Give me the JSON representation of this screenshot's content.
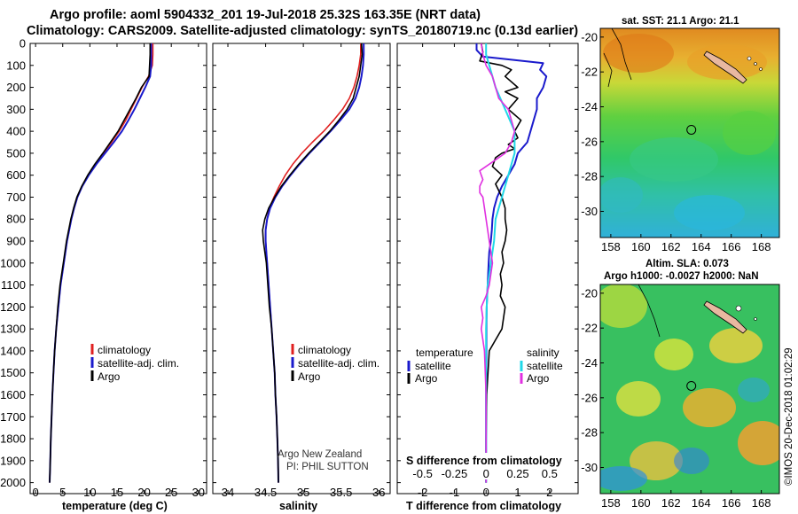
{
  "header": {
    "line1": "Argo profile: aoml 5904332_201 19-Jul-2018 25.32S 163.35E (NRT data)",
    "line2": "Climatology: CARS2009. Satellite-adjusted climatology: synTS_20180719.nc (0.13d earlier)"
  },
  "colors": {
    "climatology": "#e02020",
    "satellite": "#1a1acc",
    "argo": "#000000",
    "satellite_s": "#20d8e8",
    "argo_s": "#e030e0"
  },
  "depth_ticks": [
    "0",
    "100",
    "200",
    "300",
    "400",
    "500",
    "600",
    "700",
    "800",
    "900",
    "1000",
    "1100",
    "1200",
    "1300",
    "1400",
    "1500",
    "1600",
    "1700",
    "1800",
    "1900",
    "2000"
  ],
  "chart_data": [
    {
      "type": "line",
      "id": "temperature",
      "xlabel": "temperature (deg C)",
      "ylabel": "",
      "xlim": [
        -1,
        31.5
      ],
      "ylim": [
        0,
        2050
      ],
      "y_inverted": true,
      "xticks": [
        0,
        5,
        10,
        15,
        20,
        25,
        30
      ],
      "legend": [
        "climatology",
        "satellite-adj. clim.",
        "Argo"
      ],
      "series": [
        {
          "name": "climatology",
          "y": [
            0,
            50,
            100,
            150,
            200,
            250,
            300,
            350,
            400,
            450,
            500,
            550,
            600,
            650,
            700,
            750,
            800,
            900,
            1000,
            1100,
            1200,
            1300,
            1400,
            1500,
            1600,
            1700,
            1800,
            1900,
            2000
          ],
          "x": [
            21.6,
            21.6,
            21.5,
            20.8,
            19.6,
            18.6,
            17.6,
            16.6,
            15.4,
            14.0,
            12.5,
            11.0,
            9.7,
            8.6,
            7.7,
            7.1,
            6.6,
            5.8,
            5.2,
            4.6,
            4.2,
            3.8,
            3.5,
            3.3,
            3.1,
            2.95,
            2.8,
            2.7,
            2.6
          ]
        },
        {
          "name": "satellite-adj. clim.",
          "y": [
            0,
            50,
            100,
            150,
            200,
            250,
            300,
            350,
            400,
            450,
            500,
            550,
            600,
            650,
            700,
            750,
            800,
            900,
            1000,
            1100,
            1200,
            1300,
            1400,
            1500,
            1600,
            1700,
            1800,
            1900,
            2000
          ],
          "x": [
            21.3,
            21.3,
            21.3,
            21.1,
            20.2,
            19.2,
            18.2,
            17.1,
            15.9,
            14.4,
            12.8,
            11.2,
            9.8,
            8.6,
            7.7,
            7.1,
            6.6,
            5.8,
            5.2,
            4.6,
            4.2,
            3.8,
            3.5,
            3.3,
            3.1,
            2.95,
            2.8,
            2.7,
            2.6
          ]
        },
        {
          "name": "Argo",
          "y": [
            0,
            50,
            100,
            150,
            200,
            250,
            300,
            350,
            400,
            450,
            500,
            550,
            600,
            650,
            700,
            750,
            800,
            900,
            1000,
            1100,
            1200,
            1300,
            1400,
            1500,
            1600,
            1700,
            1800,
            1900,
            2000
          ],
          "x": [
            21.1,
            21.1,
            21.0,
            20.9,
            19.5,
            18.5,
            17.4,
            16.3,
            15.2,
            13.8,
            12.4,
            10.9,
            9.6,
            8.5,
            7.6,
            7.0,
            6.5,
            5.7,
            5.1,
            4.5,
            4.1,
            3.8,
            3.5,
            3.3,
            3.1,
            2.95,
            2.8,
            2.7,
            2.6
          ]
        }
      ]
    },
    {
      "type": "line",
      "id": "salinity",
      "xlabel": "salinity",
      "ylabel": "",
      "xlim": [
        33.8,
        36.15
      ],
      "ylim": [
        0,
        2050
      ],
      "y_inverted": true,
      "xticks": [
        34,
        34.5,
        35,
        35.5,
        36
      ],
      "legend": [
        "climatology",
        "satellite-adj. clim.",
        "Argo"
      ],
      "series": [
        {
          "name": "climatology",
          "y": [
            0,
            50,
            100,
            150,
            200,
            250,
            300,
            350,
            400,
            450,
            500,
            550,
            600,
            650,
            700,
            750,
            800,
            850,
            900,
            950,
            1000,
            1100,
            1200,
            1300,
            1400,
            1500,
            1600,
            1700,
            1800,
            1900,
            2000
          ],
          "x": [
            35.76,
            35.76,
            35.74,
            35.71,
            35.67,
            35.61,
            35.52,
            35.4,
            35.27,
            35.12,
            34.98,
            34.86,
            34.76,
            34.68,
            34.61,
            34.55,
            34.52,
            34.5,
            34.5,
            34.51,
            34.52,
            34.54,
            34.56,
            34.58,
            34.6,
            34.62,
            34.63,
            34.645,
            34.655,
            34.665,
            34.67
          ]
        },
        {
          "name": "satellite-adj. clim.",
          "y": [
            0,
            50,
            100,
            150,
            200,
            250,
            300,
            350,
            400,
            450,
            500,
            550,
            600,
            650,
            700,
            750,
            800,
            850,
            900,
            950,
            1000,
            1100,
            1200,
            1300,
            1400,
            1500,
            1600,
            1700,
            1800,
            1900,
            2000
          ],
          "x": [
            35.8,
            35.8,
            35.79,
            35.77,
            35.74,
            35.69,
            35.61,
            35.49,
            35.36,
            35.22,
            35.08,
            34.95,
            34.83,
            34.72,
            34.63,
            34.56,
            34.52,
            34.5,
            34.5,
            34.51,
            34.52,
            34.54,
            34.56,
            34.58,
            34.6,
            34.62,
            34.63,
            34.645,
            34.655,
            34.665,
            34.67
          ]
        },
        {
          "name": "Argo",
          "y": [
            0,
            50,
            100,
            150,
            200,
            250,
            300,
            350,
            400,
            450,
            500,
            550,
            600,
            650,
            700,
            750,
            800,
            850,
            900,
            950,
            1000,
            1100,
            1200,
            1300,
            1400,
            1500,
            1600,
            1700,
            1800,
            1900,
            2000
          ],
          "x": [
            35.77,
            35.78,
            35.76,
            35.74,
            35.7,
            35.66,
            35.58,
            35.47,
            35.35,
            35.21,
            35.07,
            34.94,
            34.82,
            34.71,
            34.62,
            34.54,
            34.49,
            34.46,
            34.47,
            34.49,
            34.51,
            34.53,
            34.55,
            34.58,
            34.6,
            34.62,
            34.63,
            34.645,
            34.655,
            34.665,
            34.67
          ]
        }
      ],
      "annotation": [
        "Argo New Zealand",
        "PI: PHIL SUTTON"
      ]
    },
    {
      "type": "line",
      "id": "difference",
      "xlabel": "T difference from climatology",
      "xlabel_top": "S difference from climatology",
      "ylabel": "",
      "xlim": [
        -2.8,
        2.9
      ],
      "ylim": [
        0,
        2050
      ],
      "y_inverted": true,
      "xticks": [
        -2,
        -1,
        0,
        1,
        2
      ],
      "xticks_top": [
        "-0.5",
        "-0.25",
        "0",
        "0.25",
        "0.5"
      ],
      "xticks_top_pos": [
        -2,
        -1,
        0,
        1,
        2
      ],
      "legend_left_title": "temperature",
      "legend_right_title": "salinity",
      "legend_left": [
        "satellite",
        "Argo"
      ],
      "legend_right": [
        "satellite",
        "Argo"
      ],
      "series": [
        {
          "name": "T satellite",
          "y": [
            0,
            30,
            60,
            90,
            120,
            150,
            200,
            250,
            300,
            350,
            400,
            450,
            500,
            550,
            600,
            650,
            700,
            750,
            800,
            850,
            900,
            950,
            1000,
            1100,
            1200,
            1300,
            1400,
            1600,
            1800,
            2000
          ],
          "x": [
            -0.3,
            -0.3,
            -0.1,
            1.8,
            1.7,
            1.9,
            1.8,
            1.6,
            1.6,
            1.5,
            1.4,
            1.3,
            1.0,
            0.9,
            0.7,
            0.5,
            0.35,
            0.25,
            0.2,
            0.18,
            0.15,
            0.1,
            0.08,
            0.05,
            0.02,
            0.01,
            0.01,
            0.0,
            0.0,
            0.0
          ]
        },
        {
          "name": "T Argo",
          "y": [
            0,
            40,
            80,
            100,
            120,
            150,
            200,
            220,
            250,
            300,
            350,
            400,
            430,
            460,
            480,
            500,
            520,
            540,
            560,
            600,
            640,
            700,
            750,
            800,
            850,
            900,
            950,
            1000,
            1050,
            1100,
            1150,
            1200,
            1250,
            1300,
            1350,
            1400,
            1600,
            1800,
            2000
          ],
          "x": [
            -0.15,
            -0.1,
            -0.2,
            0.5,
            0.8,
            0.6,
            1.0,
            0.6,
            1.0,
            0.7,
            1.1,
            0.9,
            1.0,
            0.7,
            0.9,
            0.5,
            0.3,
            0.25,
            0.2,
            0.5,
            0.3,
            0.5,
            0.6,
            0.6,
            0.65,
            0.6,
            0.5,
            0.55,
            0.45,
            0.5,
            0.45,
            0.6,
            0.55,
            0.5,
            0.3,
            0.1,
            0.02,
            0.0,
            0.0
          ]
        },
        {
          "name": "S satellite",
          "y": [
            0,
            50,
            100,
            200,
            300,
            400,
            500,
            600,
            700,
            800,
            900,
            1000,
            1100,
            1200,
            1300,
            1400,
            1600,
            1800,
            2000
          ],
          "x": [
            0.0,
            0.0,
            0.1,
            0.3,
            0.6,
            0.9,
            0.9,
            0.7,
            0.5,
            0.3,
            0.25,
            0.15,
            0.05,
            0.02,
            0.0,
            0.0,
            0.0,
            0.0,
            0.0
          ]
        },
        {
          "name": "S Argo",
          "y": [
            0,
            50,
            100,
            150,
            200,
            250,
            300,
            350,
            400,
            450,
            500,
            550,
            580,
            600,
            620,
            650,
            680,
            700,
            750,
            800,
            850,
            900,
            950,
            1000,
            1050,
            1100,
            1150,
            1200,
            1250,
            1300,
            1350,
            1400,
            1600,
            1800,
            2000
          ],
          "x": [
            -0.15,
            -0.1,
            0.0,
            0.2,
            0.3,
            0.4,
            0.7,
            0.8,
            0.9,
            0.8,
            0.6,
            0.1,
            -0.2,
            -0.15,
            -0.1,
            -0.2,
            -0.2,
            -0.1,
            -0.05,
            0.0,
            0.05,
            0.1,
            0.15,
            0.2,
            0.15,
            0.1,
            0.0,
            -0.15,
            -0.1,
            -0.15,
            -0.1,
            -0.05,
            0.0,
            0.0,
            0.0
          ]
        }
      ]
    }
  ],
  "sst_map": {
    "title": "sat. SST: 21.1 Argo: 21.1",
    "xticks": [
      "158",
      "160",
      "162",
      "164",
      "166",
      "168"
    ],
    "yticks": [
      "-20",
      "-22",
      "-24",
      "-26",
      "-28",
      "-30"
    ],
    "lon_range": [
      157.3,
      169.2
    ],
    "lat_range": [
      -31.5,
      -19.5
    ],
    "argo_lon": 163.35,
    "argo_lat": -25.32
  },
  "sla_map": {
    "title_line1": "Altim. SLA: 0.073",
    "title_line2": "Argo h1000: -0.0027 h2000: NaN",
    "xticks": [
      "158",
      "160",
      "162",
      "164",
      "166",
      "168"
    ],
    "yticks": [
      "-20",
      "-22",
      "-24",
      "-26",
      "-28",
      "-30"
    ],
    "lon_range": [
      157.3,
      169.2
    ],
    "lat_range": [
      -31.5,
      -19.5
    ],
    "argo_lon": 163.35,
    "argo_lat": -25.32
  },
  "watermark": "©IMOS 20-Dec-2018 01:02:29"
}
